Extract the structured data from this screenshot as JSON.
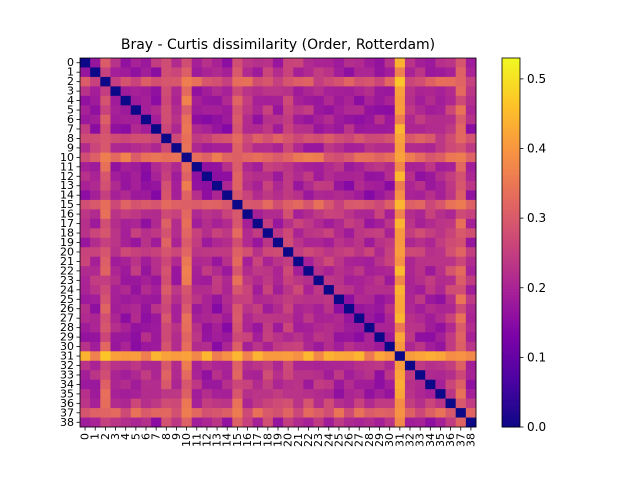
{
  "chart_data": {
    "type": "heatmap",
    "title": "Bray - Curtis dissimilarity (Order, Rotterdam)",
    "xlabel": "",
    "ylabel": "",
    "labels": [
      "0",
      "1",
      "2",
      "3",
      "4",
      "5",
      "6",
      "7",
      "8",
      "9",
      "10",
      "11",
      "12",
      "13",
      "14",
      "15",
      "16",
      "17",
      "18",
      "19",
      "20",
      "21",
      "22",
      "23",
      "24",
      "25",
      "26",
      "27",
      "28",
      "29",
      "30",
      "31",
      "32",
      "33",
      "34",
      "35",
      "36",
      "37",
      "38"
    ],
    "colormap": "plasma",
    "vmin": 0.0,
    "vmax": 0.53,
    "colorbar_ticks": [
      "0.0",
      "0.1",
      "0.2",
      "0.3",
      "0.4",
      "0.5"
    ],
    "colorbar_tick_values": [
      0.0,
      0.1,
      0.2,
      0.3,
      0.4,
      0.5
    ],
    "row_profile": [
      0.2,
      0.18,
      0.31,
      0.19,
      0.19,
      0.18,
      0.18,
      0.19,
      0.3,
      0.22,
      0.35,
      0.2,
      0.19,
      0.18,
      0.19,
      0.32,
      0.22,
      0.21,
      0.24,
      0.22,
      0.26,
      0.23,
      0.21,
      0.21,
      0.22,
      0.19,
      0.19,
      0.19,
      0.18,
      0.18,
      0.19,
      0.45,
      0.22,
      0.21,
      0.2,
      0.2,
      0.25,
      0.33,
      0.2
    ],
    "diagonal": 0.0
  }
}
